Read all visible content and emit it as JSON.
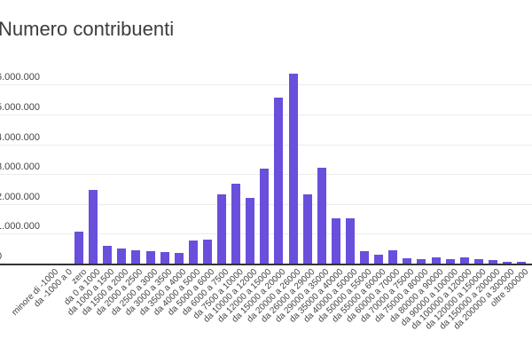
{
  "chart_data": {
    "type": "bar",
    "title": "Numero contribuenti",
    "xlabel": "",
    "ylabel": "",
    "ylim": [
      0,
      6400000
    ],
    "grid": true,
    "legend": null,
    "bar_color": "#6a4fdc",
    "yticks": [
      "0",
      "1.000.000",
      "2.000.000",
      "3.000.000",
      "4.000.000",
      "5.000.000",
      "6.000.000"
    ],
    "categories": [
      "minore di -1000",
      "da -1000 a 0",
      "zero",
      "da 0 a 1000",
      "da 1000 a 1500",
      "da 1500 a 2000",
      "da 2000 a 2500",
      "da 2500 a 3000",
      "da 3000 a 3500",
      "da 3500 a 4000",
      "da 4000 a 5000",
      "da 5000 a 6000",
      "da 6000 a 7500",
      "da 7500 a 10000",
      "da 10000 a 12000",
      "da 12000 a 15000",
      "da 15000 a 20000",
      "da 20000 a 26000",
      "da 26000 a 29000",
      "da 29000 a 35000",
      "da 35000 a 40000",
      "da 40000 a 50000",
      "da 50000 a 55000",
      "da 55000 a 60000",
      "da 60000 a 70000",
      "da 70000 a 75000",
      "da 75000 a 80000",
      "da 80000 a 90000",
      "da 90000 a 100000",
      "da 100000 a 120000",
      "da 120000 a 150000",
      "da 150000 a 200000",
      "da 200000 a 300000",
      "oltre 300000"
    ],
    "values": [
      0,
      0,
      1060000,
      2480000,
      600000,
      520000,
      450000,
      430000,
      380000,
      370000,
      770000,
      800000,
      2330000,
      2690000,
      2200000,
      3170000,
      5580000,
      6380000,
      2330000,
      3220000,
      1530000,
      1520000,
      410000,
      310000,
      460000,
      180000,
      150000,
      220000,
      150000,
      200000,
      160000,
      120000,
      70000,
      60000
    ]
  }
}
